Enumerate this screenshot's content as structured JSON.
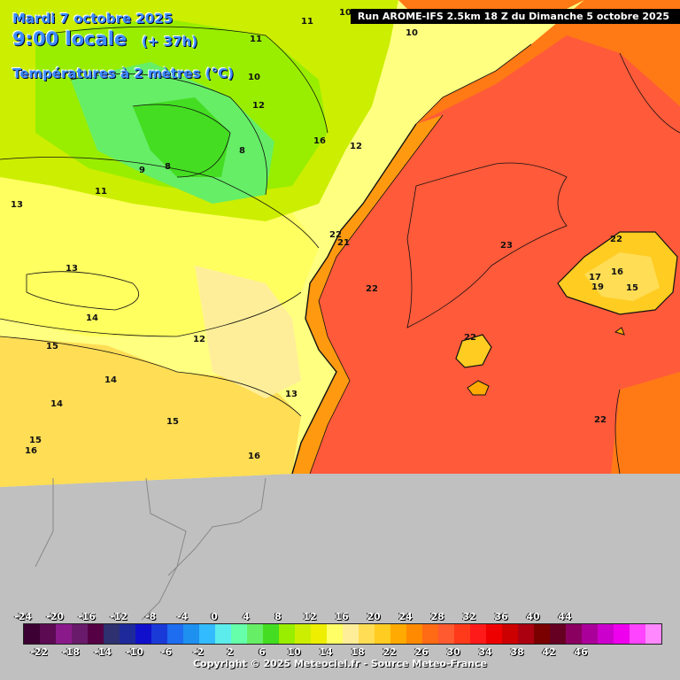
{
  "header": {
    "date_line": "Mardi 7 octobre 2025",
    "time_line": "9:00 locale",
    "offset": "(+ 37h)",
    "variable": "Températures à 2 mètres (°C)",
    "run_info": "Run AROME-IFS 2.5km 18 Z du Dimanche 5 octobre 2025"
  },
  "map_labels": [
    {
      "text": "22",
      "where": "sea-center"
    },
    {
      "text": "23",
      "where": "sea-north"
    },
    {
      "text": "22",
      "where": "sea-south"
    },
    {
      "text": "22",
      "where": "ibiza"
    },
    {
      "text": "22",
      "where": "mallorca-north"
    },
    {
      "text": "17",
      "where": "mallorca"
    },
    {
      "text": "16",
      "where": "mallorca"
    },
    {
      "text": "19",
      "where": "mallorca"
    },
    {
      "text": "15",
      "where": "mallorca"
    },
    {
      "text": "10",
      "where": "land"
    },
    {
      "text": "10",
      "where": "land"
    },
    {
      "text": "10",
      "where": "land"
    },
    {
      "text": "11",
      "where": "land"
    },
    {
      "text": "11",
      "where": "land"
    },
    {
      "text": "11",
      "where": "land"
    },
    {
      "text": "12",
      "where": "land"
    },
    {
      "text": "12",
      "where": "land"
    },
    {
      "text": "12",
      "where": "land"
    },
    {
      "text": "13",
      "where": "land"
    },
    {
      "text": "13",
      "where": "land"
    },
    {
      "text": "13",
      "where": "land"
    },
    {
      "text": "14",
      "where": "land"
    },
    {
      "text": "14",
      "where": "land"
    },
    {
      "text": "14",
      "where": "land"
    },
    {
      "text": "15",
      "where": "land"
    },
    {
      "text": "15",
      "where": "land"
    },
    {
      "text": "15",
      "where": "land"
    },
    {
      "text": "16",
      "where": "land"
    },
    {
      "text": "16",
      "where": "land"
    },
    {
      "text": "16",
      "where": "land"
    },
    {
      "text": "9",
      "where": "land"
    },
    {
      "text": "8",
      "where": "land"
    },
    {
      "text": "8",
      "where": "land"
    },
    {
      "text": "21",
      "where": "coast"
    },
    {
      "text": "22",
      "where": "coast"
    }
  ],
  "legend": {
    "top_ticks": [
      "-24",
      "-20",
      "-16",
      "-12",
      "-8",
      "-4",
      "0",
      "4",
      "8",
      "12",
      "16",
      "20",
      "24",
      "28",
      "32",
      "36",
      "40",
      "44"
    ],
    "bottom_ticks": [
      "-22",
      "-18",
      "-14",
      "-10",
      "-6",
      "-2",
      "2",
      "6",
      "10",
      "14",
      "18",
      "22",
      "26",
      "30",
      "34",
      "38",
      "42",
      "46"
    ],
    "colors": [
      "#3d0033",
      "#5c0a52",
      "#8a1a8a",
      "#6a1a6a",
      "#550044",
      "#2e3070",
      "#1e2a99",
      "#1010cc",
      "#1a3ad8",
      "#1e6cf0",
      "#1e90f0",
      "#33bbff",
      "#5cecec",
      "#66ffaa",
      "#66ee66",
      "#44dd22",
      "#99ee00",
      "#ccee00",
      "#eeee00",
      "#ffff66",
      "#ffee99",
      "#ffdd55",
      "#ffcc22",
      "#ffaa00",
      "#ff8a00",
      "#ff6a14",
      "#ff5a30",
      "#ff3a1a",
      "#ff1a1a",
      "#ee0000",
      "#cc0000",
      "#aa0010",
      "#7a0000",
      "#660022",
      "#8a0060",
      "#aa0099",
      "#cc00cc",
      "#ee00ee",
      "#ff44ff",
      "#ff88ff"
    ]
  },
  "copyright": "Copyright © 2025 Meteociel.fr - Source Meteo-France"
}
